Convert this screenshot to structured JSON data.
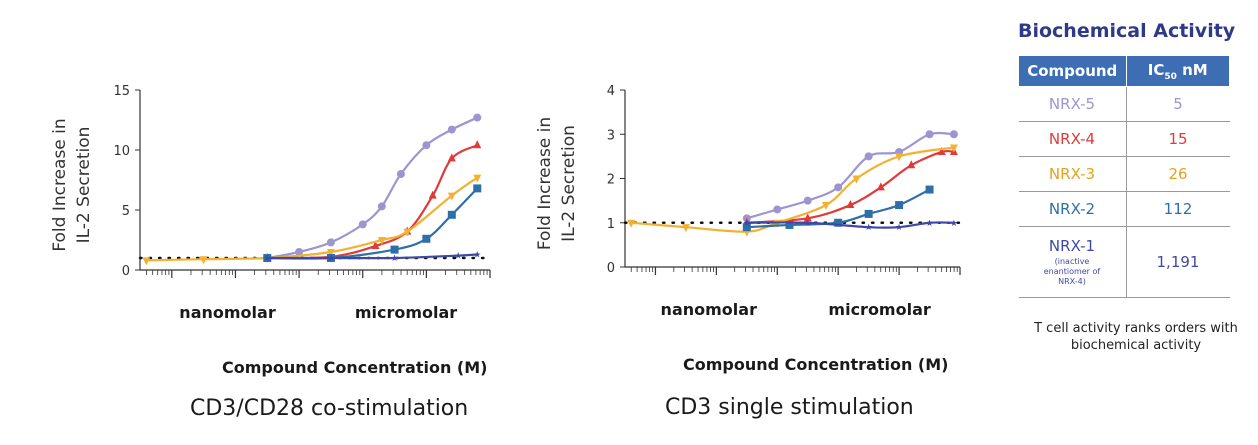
{
  "chart_data": [
    {
      "type": "line",
      "title": "CD3/CD28 co-stimulation",
      "xlabel": "Compound Concentration (M)",
      "ylabel_lines": [
        "Fold Increase in",
        "IL-2 Secretion"
      ],
      "x_scale": "log",
      "x_regions": [
        "nanomolar",
        "micromolar"
      ],
      "yticks": [
        "0",
        "5",
        "10",
        "15"
      ],
      "ylim": [
        0,
        15
      ],
      "xlim_log10": [
        -10.5,
        -5
      ],
      "baseline": 1,
      "series": [
        {
          "name": "NRX-5",
          "color": "#9c95cf",
          "marker": "circle",
          "x": [
            -8.5,
            -8,
            -7.5,
            -7,
            -6.7,
            -6.4,
            -6.0,
            -5.6,
            -5.2
          ],
          "y": [
            1.0,
            1.5,
            2.3,
            3.8,
            5.3,
            8.0,
            10.4,
            11.7,
            12.7
          ]
        },
        {
          "name": "NRX-4",
          "color": "#e03a3a",
          "marker": "triangle",
          "x": [
            -8.5,
            -7.5,
            -6.8,
            -6.3,
            -5.9,
            -5.6,
            -5.2
          ],
          "y": [
            1.0,
            1.1,
            2.0,
            3.2,
            6.2,
            9.3,
            10.4
          ]
        },
        {
          "name": "NRX-3",
          "color": "#f2b132",
          "marker": "triangle-down",
          "x": [
            -10.4,
            -9.5,
            -8.5,
            -7.5,
            -6.7,
            -6.3,
            -5.6,
            -5.2
          ],
          "y": [
            0.8,
            0.9,
            1.0,
            1.5,
            2.5,
            3.2,
            6.2,
            7.7
          ]
        },
        {
          "name": "NRX-2",
          "color": "#2f6fa8",
          "marker": "square",
          "x": [
            -8.5,
            -7.5,
            -6.5,
            -6.0,
            -5.6,
            -5.2
          ],
          "y": [
            1.0,
            1.0,
            1.7,
            2.6,
            4.6,
            6.8
          ]
        },
        {
          "name": "NRX-1",
          "color": "#3f48a6",
          "marker": "star",
          "x": [
            -8.5,
            -7.5,
            -6.5,
            -5.5,
            -5.2
          ],
          "y": [
            1.0,
            1.0,
            1.0,
            1.2,
            1.3
          ]
        }
      ]
    },
    {
      "type": "line",
      "title": "CD3 single stimulation",
      "xlabel": "Compound Concentration (M)",
      "ylabel_lines": [
        "Fold Increase in",
        "IL-2 Secretion"
      ],
      "x_scale": "log",
      "x_regions": [
        "nanomolar",
        "micromolar"
      ],
      "yticks": [
        "0",
        "1",
        "2",
        "3",
        "4"
      ],
      "ylim": [
        0,
        4
      ],
      "xlim_log10": [
        -10.5,
        -5
      ],
      "baseline": 1,
      "series": [
        {
          "name": "NRX-5",
          "color": "#9c95cf",
          "marker": "circle",
          "x": [
            -8.5,
            -8,
            -7.5,
            -7.0,
            -6.5,
            -6.0,
            -5.5,
            -5.1
          ],
          "y": [
            1.1,
            1.3,
            1.5,
            1.8,
            2.5,
            2.6,
            3.0,
            3.0
          ]
        },
        {
          "name": "NRX-4",
          "color": "#e03a3a",
          "marker": "triangle",
          "x": [
            -8.5,
            -7.5,
            -6.8,
            -6.3,
            -5.8,
            -5.3,
            -5.1
          ],
          "y": [
            1.0,
            1.1,
            1.4,
            1.8,
            2.3,
            2.6,
            2.6
          ]
        },
        {
          "name": "NRX-3",
          "color": "#f2b132",
          "marker": "triangle-down",
          "x": [
            -10.4,
            -9.5,
            -8.5,
            -8.0,
            -7.2,
            -6.7,
            -6.0,
            -5.1
          ],
          "y": [
            1.0,
            0.9,
            0.8,
            1.0,
            1.4,
            2.0,
            2.5,
            2.7
          ]
        },
        {
          "name": "NRX-2",
          "color": "#2f6fa8",
          "marker": "square",
          "x": [
            -8.5,
            -7.8,
            -7.0,
            -6.5,
            -6.0,
            -5.5
          ],
          "y": [
            0.9,
            0.95,
            1.0,
            1.2,
            1.4,
            1.75
          ]
        },
        {
          "name": "NRX-1",
          "color": "#3f48a6",
          "marker": "star",
          "x": [
            -8.5,
            -7.5,
            -6.5,
            -6.0,
            -5.5,
            -5.1
          ],
          "y": [
            1.0,
            1.0,
            0.9,
            0.9,
            1.0,
            1.0
          ]
        }
      ]
    }
  ],
  "table": {
    "title": "Biochemical Activity",
    "headers": [
      "Compound",
      "IC",
      "50",
      " nM"
    ],
    "rows": [
      {
        "name": "NRX-5",
        "value": "5",
        "color": "#9c95cf"
      },
      {
        "name": "NRX-4",
        "value": "15",
        "color": "#e03a3a"
      },
      {
        "name": "NRX-3",
        "value": "26",
        "color": "#f2b132"
      },
      {
        "name": "NRX-2",
        "value": "112",
        "color": "#2f6fa8"
      },
      {
        "name": "NRX-1",
        "note": "(inactive enantiomer of NRX-4)",
        "value": "1,191",
        "color": "#3f48a6"
      }
    ],
    "footnote": "T cell activity ranks orders with biochemical activity"
  }
}
